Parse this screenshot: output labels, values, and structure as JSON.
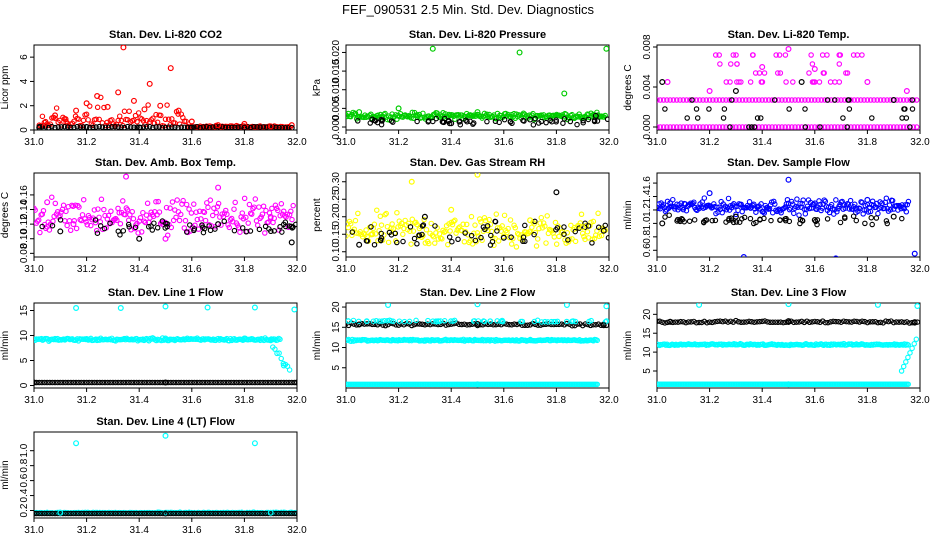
{
  "figure": {
    "title": "FEF_090531  2.5 Min. Std. Dev. Diagnostics"
  },
  "chart_data": [
    {
      "type": "scatter",
      "title": "Stan. Dev. Li-820 CO2",
      "xlabel": "",
      "ylabel": "Licor ppm",
      "xlim": [
        31.0,
        32.0
      ],
      "ylim": [
        0,
        7
      ],
      "x_ticks": [
        "31.0",
        "31.2",
        "31.4",
        "31.6",
        "31.8",
        "32.0"
      ],
      "y_ticks": [
        {
          "v": 0,
          "label": "0"
        },
        {
          "v": 2,
          "label": "2"
        },
        {
          "v": 4,
          "label": "4"
        },
        {
          "v": 6,
          "label": "6"
        }
      ],
      "series": [
        {
          "color": "#ff0000",
          "values": [
            [
              31.04,
              0.6
            ],
            [
              31.08,
              1.2
            ],
            [
              31.12,
              0.9
            ],
            [
              31.16,
              1.6
            ],
            [
              31.2,
              2.2
            ],
            [
              31.24,
              2.8
            ],
            [
              31.28,
              1.9
            ],
            [
              31.32,
              3.1
            ],
            [
              31.34,
              6.8
            ],
            [
              31.38,
              2.4
            ],
            [
              31.42,
              1.7
            ],
            [
              31.44,
              3.8
            ],
            [
              31.48,
              2.0
            ],
            [
              31.52,
              5.1
            ],
            [
              31.55,
              1.6
            ],
            [
              31.6,
              0.7
            ],
            [
              31.7,
              0.4
            ],
            [
              31.8,
              0.5
            ],
            [
              31.9,
              0.3
            ],
            [
              31.98,
              0.4
            ]
          ]
        },
        {
          "color": "#000000",
          "values": [
            [
              31.02,
              0.2
            ],
            [
              31.2,
              0.25
            ],
            [
              31.4,
              0.22
            ],
            [
              31.6,
              0.2
            ],
            [
              31.8,
              0.2
            ],
            [
              31.98,
              0.18
            ]
          ]
        }
      ]
    },
    {
      "type": "scatter",
      "title": "Stan. Dev. Li-820 Pressure",
      "xlabel": "",
      "ylabel": "kPa",
      "xlim": [
        31.0,
        32.0
      ],
      "ylim": [
        -0.0008,
        0.022
      ],
      "x_ticks": [
        "31.0",
        "31.2",
        "31.4",
        "31.6",
        "31.8",
        "32.0"
      ],
      "y_ticks": [
        {
          "v": 0,
          "label": "0.000"
        },
        {
          "v": 0.005,
          "label": "0.005"
        },
        {
          "v": 0.01,
          "label": "0.010"
        },
        {
          "v": 0.015,
          "label": "0.015"
        },
        {
          "v": 0.02,
          "label": "0.020"
        }
      ],
      "series": [
        {
          "color": "#00cc00",
          "values": [
            [
              31.05,
              0.004
            ],
            [
              31.2,
              0.005
            ],
            [
              31.33,
              0.021
            ],
            [
              31.5,
              0.004
            ],
            [
              31.66,
              0.02
            ],
            [
              31.83,
              0.009
            ],
            [
              31.99,
              0.021
            ]
          ]
        },
        {
          "color": "#000000",
          "values": [
            [
              31.1,
              0.002
            ],
            [
              31.4,
              0.001
            ],
            [
              31.7,
              0.002
            ],
            [
              31.95,
              0.003
            ]
          ]
        }
      ]
    },
    {
      "type": "scatter",
      "title": "Stan. Dev. Li-820 Temp.",
      "xlabel": "",
      "ylabel": "degrees C",
      "xlim": [
        31.0,
        32.0
      ],
      "ylim": [
        -0.0003,
        0.0082
      ],
      "x_ticks": [
        "31.0",
        "31.2",
        "31.4",
        "31.6",
        "31.8",
        "32.0"
      ],
      "y_ticks": [
        {
          "v": 0,
          "label": "0.000"
        },
        {
          "v": 0.004,
          "label": "0.004"
        },
        {
          "v": 0.008,
          "label": "0.008"
        }
      ],
      "series": [
        {
          "color": "#ff00ff",
          "values": [
            [
              31.04,
              0.0045
            ],
            [
              31.2,
              0.0036
            ],
            [
              31.4,
              0.006
            ],
            [
              31.5,
              0.0078
            ],
            [
              31.6,
              0.0058
            ],
            [
              31.8,
              0.0045
            ],
            [
              31.95,
              0.0036
            ]
          ]
        },
        {
          "color": "#000000",
          "values": [
            [
              31.02,
              0.0045
            ],
            [
              31.3,
              0.0036
            ],
            [
              31.55,
              0.0045
            ],
            [
              31.9,
              0.0027
            ]
          ]
        }
      ]
    },
    {
      "type": "scatter",
      "title": "Stan. Dev. Amb. Box Temp.",
      "xlabel": "",
      "ylabel": "degrees C",
      "xlim": [
        31.0,
        32.0
      ],
      "ylim": [
        0.075,
        0.19
      ],
      "x_ticks": [
        "31.0",
        "31.2",
        "31.4",
        "31.6",
        "31.8",
        "32.0"
      ],
      "y_ticks": [
        {
          "v": 0.08,
          "label": "0.08"
        },
        {
          "v": 0.1,
          "label": "0.10"
        },
        {
          "v": 0.12,
          "label": "0.12"
        },
        {
          "v": 0.14,
          "label": "0.14"
        },
        {
          "v": 0.16,
          "label": "0.16"
        }
      ],
      "series": [
        {
          "color": "#ff00ff",
          "values": [
            [
              31.05,
              0.15
            ],
            [
              31.15,
              0.12
            ],
            [
              31.35,
              0.185
            ],
            [
              31.5,
              0.1
            ],
            [
              31.7,
              0.17
            ],
            [
              31.9,
              0.13
            ]
          ]
        },
        {
          "color": "#000000",
          "values": [
            [
              31.1,
              0.11
            ],
            [
              31.4,
              0.1
            ],
            [
              31.7,
              0.12
            ],
            [
              31.98,
              0.095
            ]
          ]
        }
      ]
    },
    {
      "type": "scatter",
      "title": "Stan. Dev. Gas Stream RH",
      "xlabel": "",
      "ylabel": "percent",
      "xlim": [
        31.0,
        32.0
      ],
      "ylim": [
        0.085,
        0.325
      ],
      "x_ticks": [
        "31.0",
        "31.2",
        "31.4",
        "31.6",
        "31.8",
        "32.0"
      ],
      "y_ticks": [
        {
          "v": 0.1,
          "label": "0.10"
        },
        {
          "v": 0.15,
          "label": "0.15"
        },
        {
          "v": 0.2,
          "label": "0.20"
        },
        {
          "v": 0.25,
          "label": "0.25"
        },
        {
          "v": 0.3,
          "label": "0.30"
        }
      ],
      "series": [
        {
          "color": "#ffff00",
          "values": [
            [
              31.1,
              0.15
            ],
            [
              31.25,
              0.3
            ],
            [
              31.4,
              0.22
            ],
            [
              31.5,
              0.32
            ],
            [
              31.7,
              0.19
            ],
            [
              31.9,
              0.17
            ]
          ]
        },
        {
          "color": "#000000",
          "values": [
            [
              31.05,
              0.12
            ],
            [
              31.3,
              0.2
            ],
            [
              31.6,
              0.14
            ],
            [
              31.8,
              0.27
            ],
            [
              31.98,
              0.16
            ]
          ]
        }
      ]
    },
    {
      "type": "scatter",
      "title": "Stan. Dev. Sample Flow",
      "xlabel": "",
      "ylabel": "ml/min",
      "xlim": [
        31.0,
        32.0
      ],
      "ylim": [
        0.5,
        1.75
      ],
      "x_ticks": [
        "31.0",
        "31.2",
        "31.4",
        "31.6",
        "31.8",
        "32.0"
      ],
      "y_ticks": [
        {
          "v": 0.6,
          "label": "0.6"
        },
        {
          "v": 0.8,
          "label": "0.8"
        },
        {
          "v": 1.0,
          "label": "1.0"
        },
        {
          "v": 1.2,
          "label": "1.2"
        },
        {
          "v": 1.4,
          "label": "1.4"
        },
        {
          "v": 1.6,
          "label": "1.6"
        }
      ],
      "series": [
        {
          "color": "#0000ff",
          "values": [
            [
              31.05,
              1.3
            ],
            [
              31.2,
              1.45
            ],
            [
              31.33,
              0.5
            ],
            [
              31.5,
              1.65
            ],
            [
              31.68,
              0.48
            ],
            [
              31.8,
              1.35
            ],
            [
              31.98,
              0.55
            ]
          ]
        },
        {
          "color": "#000000",
          "values": [
            [
              31.02,
              1.0
            ],
            [
              31.3,
              1.1
            ],
            [
              31.6,
              1.05
            ],
            [
              31.9,
              1.1
            ]
          ]
        }
      ]
    },
    {
      "type": "scatter",
      "title": "Stan. Dev. Line 1 Flow",
      "xlabel": "",
      "ylabel": "ml/min",
      "xlim": [
        31.0,
        32.0
      ],
      "ylim": [
        -0.5,
        16.5
      ],
      "x_ticks": [
        "31.0",
        "31.2",
        "31.4",
        "31.6",
        "31.8",
        "32.0"
      ],
      "y_ticks": [
        {
          "v": 0,
          "label": "0"
        },
        {
          "v": 5,
          "label": "5"
        },
        {
          "v": 10,
          "label": "10"
        },
        {
          "v": 15,
          "label": "15"
        }
      ],
      "series": [
        {
          "color": "#00ffff",
          "values": [
            [
              31.16,
              15.5
            ],
            [
              31.33,
              15.5
            ],
            [
              31.5,
              15.8
            ],
            [
              31.66,
              15.6
            ],
            [
              31.84,
              15.6
            ],
            [
              31.99,
              15.2
            ],
            [
              31.2,
              9.3
            ],
            [
              31.5,
              9.4
            ],
            [
              31.8,
              9.4
            ],
            [
              31.95,
              4.0
            ]
          ]
        },
        {
          "color": "#000000",
          "values": [
            [
              31.0,
              0.6
            ],
            [
              31.5,
              0.6
            ],
            [
              32.0,
              0.6
            ]
          ]
        }
      ]
    },
    {
      "type": "scatter",
      "title": "Stan. Dev. Line 2 Flow",
      "xlabel": "",
      "ylabel": "ml/min",
      "xlim": [
        31.0,
        32.0
      ],
      "ylim": [
        0,
        21
      ],
      "x_ticks": [
        "31.0",
        "31.2",
        "31.4",
        "31.6",
        "31.8",
        "32.0"
      ],
      "y_ticks": [
        {
          "v": 5,
          "label": "5"
        },
        {
          "v": 10,
          "label": "10"
        },
        {
          "v": 15,
          "label": "15"
        },
        {
          "v": 20,
          "label": "20"
        }
      ],
      "series": [
        {
          "color": "#00ffff",
          "values": [
            [
              31.16,
              20.5
            ],
            [
              31.5,
              20.7
            ],
            [
              31.84,
              20.5
            ],
            [
              31.99,
              20.2
            ],
            [
              31.3,
              11.8
            ],
            [
              31.7,
              11.8
            ],
            [
              31.5,
              0.9
            ]
          ]
        },
        {
          "color": "#000000",
          "values": [
            [
              31.05,
              15.7
            ],
            [
              31.5,
              15.8
            ],
            [
              31.98,
              15.5
            ]
          ]
        }
      ]
    },
    {
      "type": "scatter",
      "title": "Stan. Dev. Line 3 Flow",
      "xlabel": "",
      "ylabel": "ml/min",
      "xlim": [
        31.0,
        32.0
      ],
      "ylim": [
        0.5,
        23
      ],
      "x_ticks": [
        "31.0",
        "31.2",
        "31.4",
        "31.6",
        "31.8",
        "32.0"
      ],
      "y_ticks": [
        {
          "v": 5,
          "label": "5"
        },
        {
          "v": 10,
          "label": "10"
        },
        {
          "v": 15,
          "label": "15"
        },
        {
          "v": 20,
          "label": "20"
        }
      ],
      "series": [
        {
          "color": "#00ffff",
          "values": [
            [
              31.16,
              22.5
            ],
            [
              31.5,
              22.7
            ],
            [
              31.84,
              22.5
            ],
            [
              31.99,
              22.2
            ],
            [
              31.3,
              12.0
            ],
            [
              31.7,
              12.0
            ],
            [
              31.5,
              1.5
            ]
          ]
        },
        {
          "color": "#000000",
          "values": [
            [
              31.05,
              18.0
            ],
            [
              31.5,
              18.2
            ],
            [
              31.98,
              17.8
            ]
          ]
        }
      ]
    },
    {
      "type": "scatter",
      "title": "Stan. Dev. Line 4 (LT) Flow",
      "xlabel": "",
      "ylabel": "ml/min",
      "xlim": [
        31.0,
        32.0
      ],
      "ylim": [
        0.1,
        1.25
      ],
      "x_ticks": [
        "31.0",
        "31.2",
        "31.4",
        "31.6",
        "31.8",
        "32.0"
      ],
      "y_ticks": [
        {
          "v": 0.2,
          "label": "0.2"
        },
        {
          "v": 0.4,
          "label": "0.4"
        },
        {
          "v": 0.6,
          "label": "0.6"
        },
        {
          "v": 0.8,
          "label": "0.8"
        },
        {
          "v": 1.0,
          "label": "1.0"
        }
      ],
      "series": [
        {
          "color": "#00ffff",
          "values": [
            [
              31.16,
              1.1
            ],
            [
              31.5,
              1.2
            ],
            [
              31.84,
              1.1
            ],
            [
              31.1,
              0.17
            ],
            [
              31.5,
              0.17
            ],
            [
              31.9,
              0.17
            ]
          ]
        },
        {
          "color": "#000000",
          "values": [
            [
              31.0,
              0.16
            ],
            [
              31.5,
              0.16
            ],
            [
              32.0,
              0.16
            ]
          ]
        }
      ]
    }
  ]
}
